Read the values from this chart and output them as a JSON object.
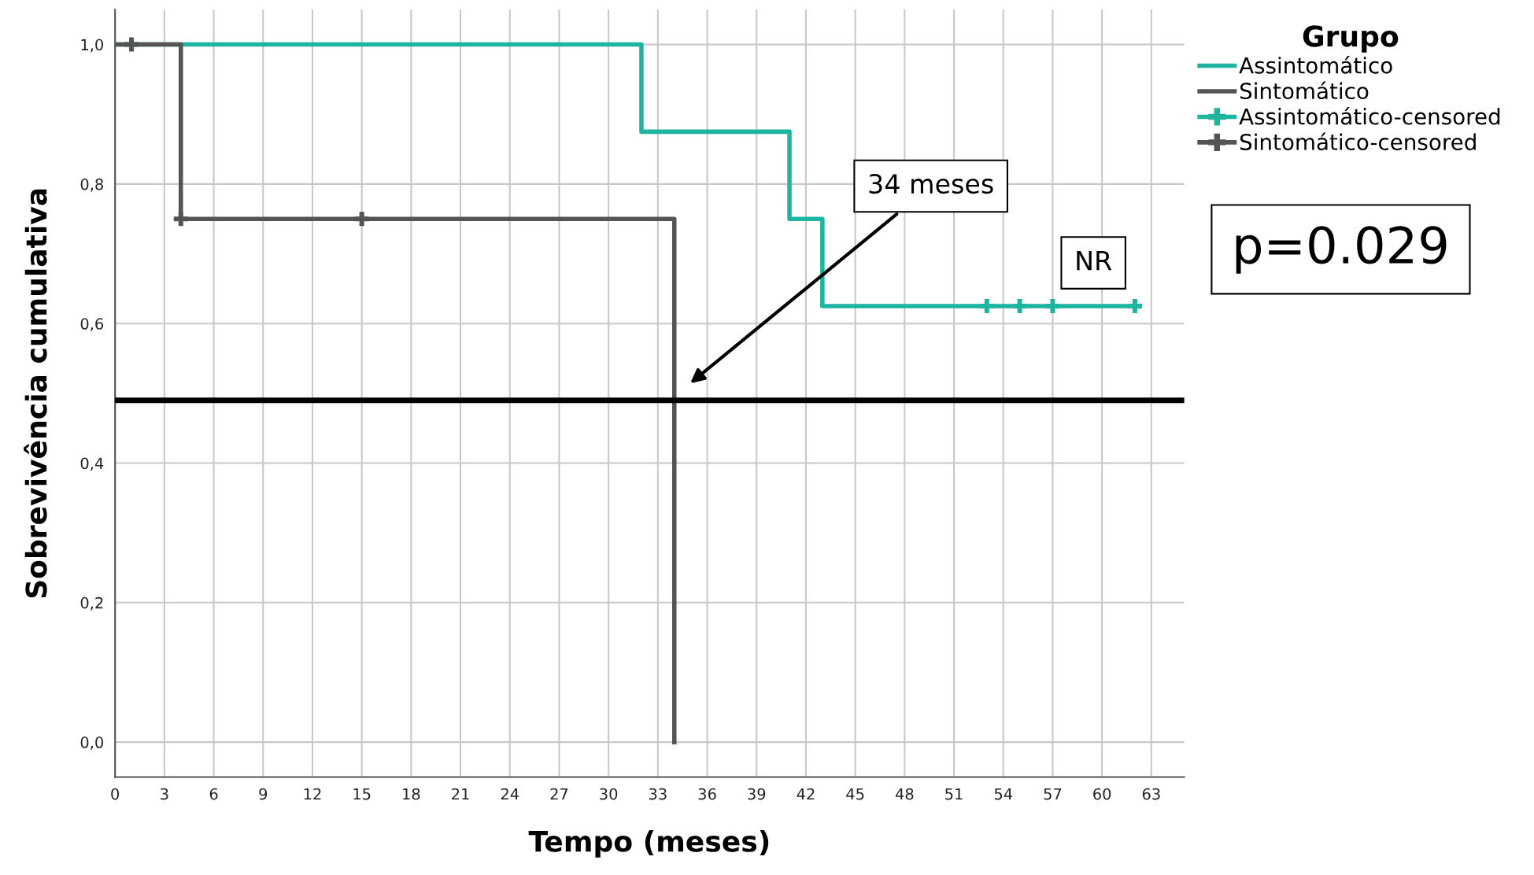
{
  "chart_data": {
    "type": "step",
    "xlabel": "Tempo (meses)",
    "ylabel": "Sobrevivência cumulativa",
    "legend_title": "Grupo",
    "xlim": [
      0,
      65
    ],
    "ylim": [
      -0.05,
      1.05
    ],
    "xticks": [
      0,
      3,
      6,
      9,
      12,
      15,
      18,
      21,
      24,
      27,
      30,
      33,
      36,
      39,
      42,
      45,
      48,
      51,
      54,
      57,
      60,
      63
    ],
    "yticks": [
      {
        "value": 0,
        "label": "0,0"
      },
      {
        "value": 0.2,
        "label": "0,2"
      },
      {
        "value": 0.4,
        "label": "0,4"
      },
      {
        "value": 0.6,
        "label": "0,6"
      },
      {
        "value": 0.8,
        "label": "0,8"
      },
      {
        "value": 1.0,
        "label": "1,0"
      }
    ],
    "grid": true,
    "legend": "top right",
    "series": [
      {
        "name": "Assintomático",
        "color": "#1db5a0",
        "x": [
          0,
          32,
          41,
          43,
          62
        ],
        "values": [
          1.0,
          0.875,
          0.75,
          0.625,
          0.625
        ]
      },
      {
        "name": "Sintomático",
        "color": "#545454",
        "x": [
          0,
          4,
          34
        ],
        "values": [
          1.0,
          0.75,
          0.0
        ]
      },
      {
        "name": "Assintomático-censored",
        "color": "#1db5a0",
        "type": "scatter",
        "marker": "cross",
        "x": [
          53,
          55,
          57,
          62
        ],
        "values": [
          0.625,
          0.625,
          0.625,
          0.625
        ]
      },
      {
        "name": "Sintomático-censored",
        "color": "#545454",
        "type": "scatter",
        "marker": "cross",
        "x": [
          1,
          4,
          15
        ],
        "values": [
          1.0,
          0.75,
          0.75
        ]
      }
    ],
    "ref_lines": [
      {
        "axis": "y",
        "value": 0.49,
        "color": "#000000"
      }
    ],
    "annotations": [
      "34 meses",
      "NR",
      "p=0.029"
    ]
  }
}
